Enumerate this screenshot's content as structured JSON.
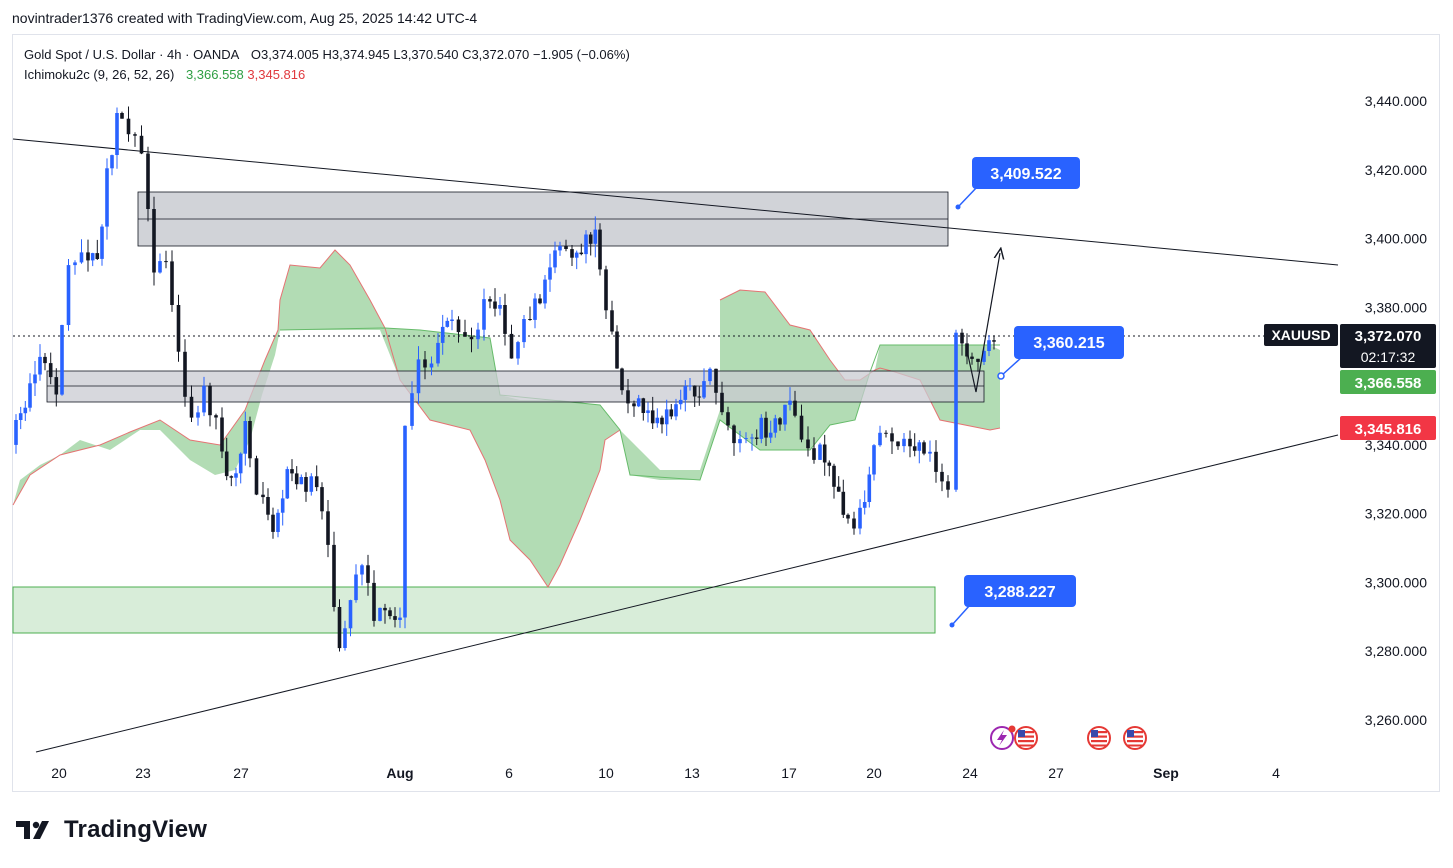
{
  "header": {
    "published_line": "novintrader1376 created with TradingView.com, Aug 25, 2025 14:42 UTC-4"
  },
  "legend": {
    "symbol_line": "Gold Spot / U.S. Dollar · 4h · OANDA",
    "open": "O3,374.005",
    "high": "H3,374.945",
    "low": "L3,370.540",
    "close": "C3,372.070",
    "change": "−1.905 (−0.06%)",
    "indicator_name": "Ichimoku2c (9, 26, 52, 26)",
    "indicator_val_1": "3,366.558",
    "indicator_val_2": "3,345.816"
  },
  "price_tags": {
    "symbol": "XAUUSD",
    "last_price": "3,372.070",
    "countdown": "02:17:32",
    "ichimoku_a": "3,366.558",
    "ichimoku_b": "3,345.816"
  },
  "callouts": [
    "3,409.522",
    "3,360.215",
    "3,288.227"
  ],
  "brand": {
    "name": "TradingView"
  },
  "colors": {
    "up": "#2962ff",
    "down": "#131722",
    "cloud_green": "#a5d6a7",
    "cloud_red_edge": "#e57373",
    "label_blue": "#2962ff",
    "tag_green": "#4caf50",
    "tag_red": "#f23645",
    "zone_gray": "#d1d4dc"
  },
  "chart_data": {
    "type": "candlestick",
    "title": "Gold Spot / U.S. Dollar · 4h · OANDA",
    "ylim": [
      3250,
      3460
    ],
    "y_ticks": [
      "3,260.000",
      "3,280.000",
      "3,300.000",
      "3,320.000",
      "3,340.000",
      "3,360.000",
      "3,380.000",
      "3,400.000",
      "3,420.000",
      "3,440.000"
    ],
    "x_ticks": [
      "20",
      "23",
      "27",
      "Aug",
      "6",
      "10",
      "13",
      "17",
      "20",
      "24",
      "27",
      "Sep",
      "4"
    ],
    "last_price": 3372.07,
    "ichimoku": {
      "span_a": 3366.558,
      "span_b": 3345.816
    },
    "resistance_zone": [
      3398,
      3414
    ],
    "mid_zone": [
      3355,
      3365
    ],
    "support_zone": [
      3285,
      3299
    ],
    "targets": [
      3409.522,
      3360.215,
      3288.227
    ],
    "trend": "bearish 4h candles in a symmetrical triangle"
  }
}
